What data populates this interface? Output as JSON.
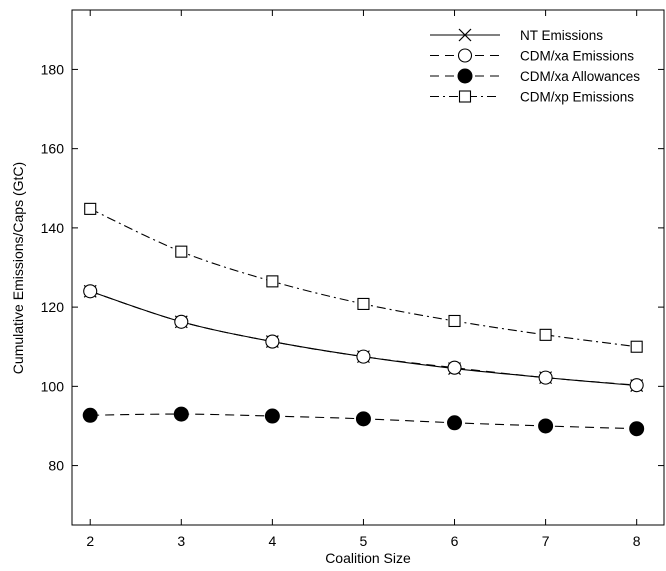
{
  "chart_data": {
    "type": "line",
    "title": "",
    "xlabel": "Coalition Size",
    "ylabel": "Cumulative Emissions/Caps (GtC)",
    "x": [
      2,
      3,
      4,
      5,
      6,
      7,
      8
    ],
    "xlim": [
      1.8,
      8.3
    ],
    "ylim": [
      65,
      195
    ],
    "xticks": [
      2,
      3,
      4,
      5,
      6,
      7,
      8
    ],
    "yticks": [
      80,
      100,
      120,
      140,
      160,
      180
    ],
    "grid": false,
    "legend_position": "top-right",
    "series": [
      {
        "name": "NT Emissions",
        "marker": "x",
        "dash": "solid",
        "color": "#000000",
        "values": [
          124,
          116.3,
          111.3,
          107.5,
          104.5,
          102.2,
          100.2
        ]
      },
      {
        "name": "CDM/xa Emissions",
        "marker": "circle-open",
        "dash": "dashed",
        "color": "#000000",
        "values": [
          124,
          116.3,
          111.3,
          107.5,
          104.7,
          102.2,
          100.3
        ]
      },
      {
        "name": "CDM/xa Allowances",
        "marker": "circle-filled",
        "dash": "dashed",
        "color": "#000000",
        "values": [
          92.7,
          93,
          92.5,
          91.8,
          90.8,
          90,
          89.3
        ]
      },
      {
        "name": "CDM/xp Emissions",
        "marker": "square-open",
        "dash": "dashdot",
        "color": "#000000",
        "values": [
          144.8,
          134,
          126.5,
          120.8,
          116.5,
          113,
          110
        ]
      }
    ]
  }
}
